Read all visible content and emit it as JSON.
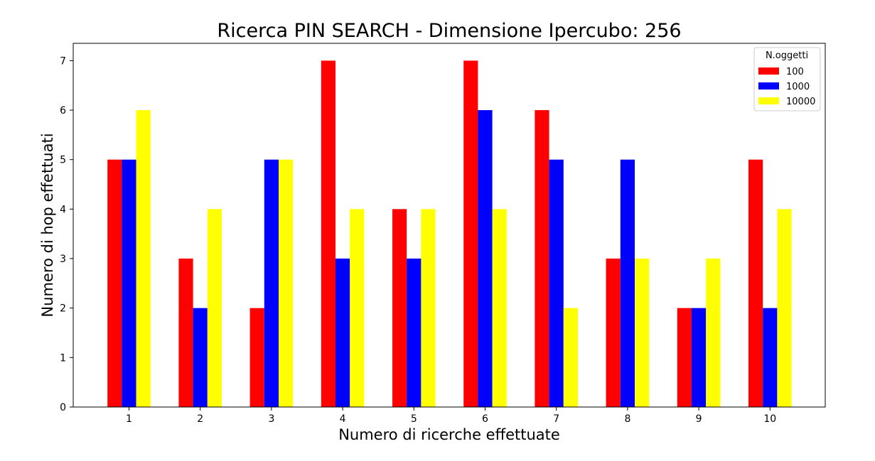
{
  "chart_data": {
    "type": "bar",
    "title": "Ricerca PIN SEARCH - Dimensione Ipercubo: 256",
    "xlabel": "Numero di ricerche effettuate",
    "ylabel": "Numero di hop effettuati",
    "categories": [
      "1",
      "2",
      "3",
      "4",
      "5",
      "6",
      "7",
      "8",
      "9",
      "10"
    ],
    "series": [
      {
        "name": "100",
        "color": "#ff0000",
        "values": [
          5,
          3,
          2,
          7,
          4,
          7,
          6,
          3,
          2,
          5
        ]
      },
      {
        "name": "1000",
        "color": "#0000ff",
        "values": [
          5,
          2,
          5,
          3,
          3,
          6,
          5,
          5,
          2,
          2
        ]
      },
      {
        "name": "10000",
        "color": "#ffff00",
        "values": [
          6,
          4,
          5,
          4,
          4,
          4,
          2,
          3,
          3,
          4
        ]
      }
    ],
    "ylim": [
      0,
      7.35
    ],
    "yticks": [
      0,
      1,
      2,
      3,
      4,
      5,
      6,
      7
    ],
    "grid": false,
    "legend": {
      "title": "N.oggetti",
      "placement": "top-right"
    }
  }
}
